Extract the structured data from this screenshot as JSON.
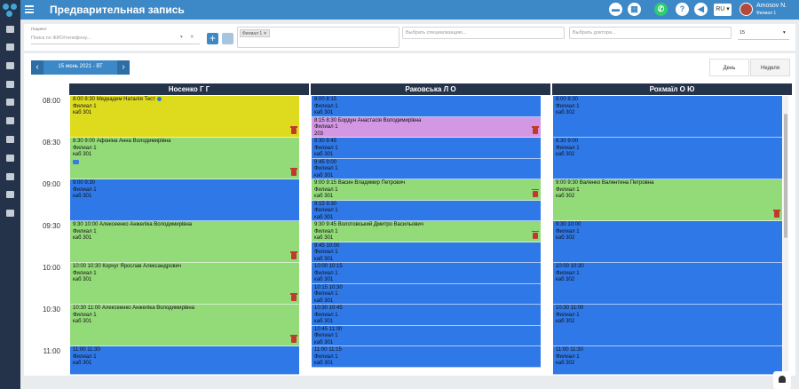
{
  "header": {
    "title": "Предварительная запись",
    "lang": "RU ▾",
    "user_name": "Amosov N.",
    "user_branch": "Филиал 1"
  },
  "colors": {
    "top_bar": "#3d88c6",
    "sidebar": "#24334a",
    "slot_blue": "#2f78e8",
    "slot_green": "#93da78",
    "slot_yellow": "#dedb1f",
    "slot_pink": "#d497e4"
  },
  "filters": {
    "patient_label": "Пациент",
    "patient_placeholder": "Поиск по ФИО/телефону...",
    "branch_tag": "Филиал 1 ✕",
    "spec_placeholder": "Выбрать специализацию...",
    "doctor_placeholder": "Выбрать доктора...",
    "interval_value": "15"
  },
  "calendar": {
    "date": "15 июнь 2021 - ВТ",
    "view_day": "День",
    "view_week": "Неделя",
    "times": [
      "08:00",
      "08:30",
      "09:00",
      "09:30",
      "10:00",
      "10:30",
      "11:00"
    ],
    "doctors": [
      {
        "name": "Носенко Г Г",
        "slots": [
          {
            "color": "yellow",
            "lines": [
              "8:00 8:30 Медкадем Наталія Тест",
              "Филиал 1",
              "каб 301"
            ],
            "icons": [
              "globe",
              "trash"
            ],
            "rows": 2
          },
          {
            "color": "green",
            "lines": [
              "8:30 9:00 Афоніна Анна Володимирівна",
              "Филиал 1",
              "каб 301"
            ],
            "icons": [
              "folder",
              "trash"
            ],
            "rows": 2
          },
          {
            "color": "blue",
            "lines": [
              "9:00 9:30",
              "Филиал 1",
              "каб 301"
            ],
            "icons": [],
            "rows": 2
          },
          {
            "color": "green",
            "lines": [
              "9:30 10:00 Алексеенко Анжеліка Володимирівна",
              "Филиал 1",
              "каб 301"
            ],
            "icons": [
              "trash"
            ],
            "rows": 2
          },
          {
            "color": "green",
            "lines": [
              "10:00 10:30 Корчуг Ярослав Александрович",
              "Филиал 1",
              "каб 301"
            ],
            "icons": [
              "trash"
            ],
            "rows": 2
          },
          {
            "color": "green",
            "lines": [
              "10:30 11:00 Алексеенко Анжеліка Володимирівна",
              "Филиал 1",
              "каб 301"
            ],
            "icons": [
              "trash"
            ],
            "rows": 2
          },
          {
            "color": "blue",
            "lines": [
              "11:00 11:30",
              "Филиал 1",
              "каб 301"
            ],
            "icons": [],
            "rows": 2
          }
        ]
      },
      {
        "name": "Раковська Л О",
        "slots": [
          {
            "color": "blue",
            "lines": [
              "8:00 8:15",
              "Филиал 1",
              "каб 301"
            ],
            "icons": [],
            "rows": 1
          },
          {
            "color": "pink",
            "lines": [
              "8:15 8:30 Бордун Анастасія Володимирівна",
              "Филиал 1",
              "203"
            ],
            "icons": [
              "trash"
            ],
            "rows": 1
          },
          {
            "color": "blue",
            "lines": [
              "8:30 8:45",
              "Филиал 1",
              "каб 301"
            ],
            "icons": [],
            "rows": 1
          },
          {
            "color": "blue",
            "lines": [
              "8:45 9:00",
              "Филиал 1",
              "каб 301"
            ],
            "icons": [],
            "rows": 1
          },
          {
            "color": "green",
            "lines": [
              "9:00 9:15 Васин Владимир Петрович",
              "Филиал 1",
              "каб 301"
            ],
            "icons": [
              "trash"
            ],
            "rows": 1
          },
          {
            "color": "blue",
            "lines": [
              "9:15 9:30",
              "Филиал 1",
              "каб 301"
            ],
            "icons": [],
            "rows": 1
          },
          {
            "color": "green",
            "lines": [
              "9:30 9:45 Волотовський Дмитро Васильович",
              "Филиал 1",
              "каб 301"
            ],
            "icons": [
              "trash"
            ],
            "rows": 1
          },
          {
            "color": "blue",
            "lines": [
              "9:45 10:00",
              "Филиал 1",
              "каб 301"
            ],
            "icons": [],
            "rows": 1
          },
          {
            "color": "blue",
            "lines": [
              "10:00 10:15",
              "Филиал 1",
              "каб 301"
            ],
            "icons": [],
            "rows": 1
          },
          {
            "color": "blue",
            "lines": [
              "10:15 10:30",
              "Филиал 1",
              "каб 301"
            ],
            "icons": [],
            "rows": 1
          },
          {
            "color": "blue",
            "lines": [
              "10:30 10:45",
              "Филиал 1",
              "каб 301"
            ],
            "icons": [],
            "rows": 1
          },
          {
            "color": "blue",
            "lines": [
              "10:45 11:00",
              "Филиал 1",
              "каб 301"
            ],
            "icons": [],
            "rows": 1
          },
          {
            "color": "blue",
            "lines": [
              "11:00 11:15",
              "Филиал 1",
              "каб 301"
            ],
            "icons": [],
            "rows": 1
          }
        ]
      },
      {
        "name": "Рохмаїл О Ю",
        "slots": [
          {
            "color": "blue",
            "lines": [
              "8:00 8:30",
              "Филиал 1",
              "каб 302"
            ],
            "icons": [],
            "rows": 2
          },
          {
            "color": "blue",
            "lines": [
              "8:30 9:00",
              "Филиал 1",
              "каб 302"
            ],
            "icons": [],
            "rows": 2
          },
          {
            "color": "green",
            "lines": [
              "9:00 9:30 Валенко Валентина Петровна",
              "Филиал 1",
              "каб 302"
            ],
            "icons": [
              "trash"
            ],
            "rows": 2
          },
          {
            "color": "blue",
            "lines": [
              "9:30 10:00",
              "Филиал 1",
              "каб 302"
            ],
            "icons": [],
            "rows": 2
          },
          {
            "color": "blue",
            "lines": [
              "10:00 10:30",
              "Филиал 1",
              "каб 302"
            ],
            "icons": [],
            "rows": 2
          },
          {
            "color": "blue",
            "lines": [
              "10:30 11:00",
              "Филиал 1",
              "каб 302"
            ],
            "icons": [],
            "rows": 2
          },
          {
            "color": "blue",
            "lines": [
              "11:00 11:30",
              "Филиал 1",
              "каб 302"
            ],
            "icons": [],
            "rows": 2
          }
        ]
      }
    ]
  }
}
